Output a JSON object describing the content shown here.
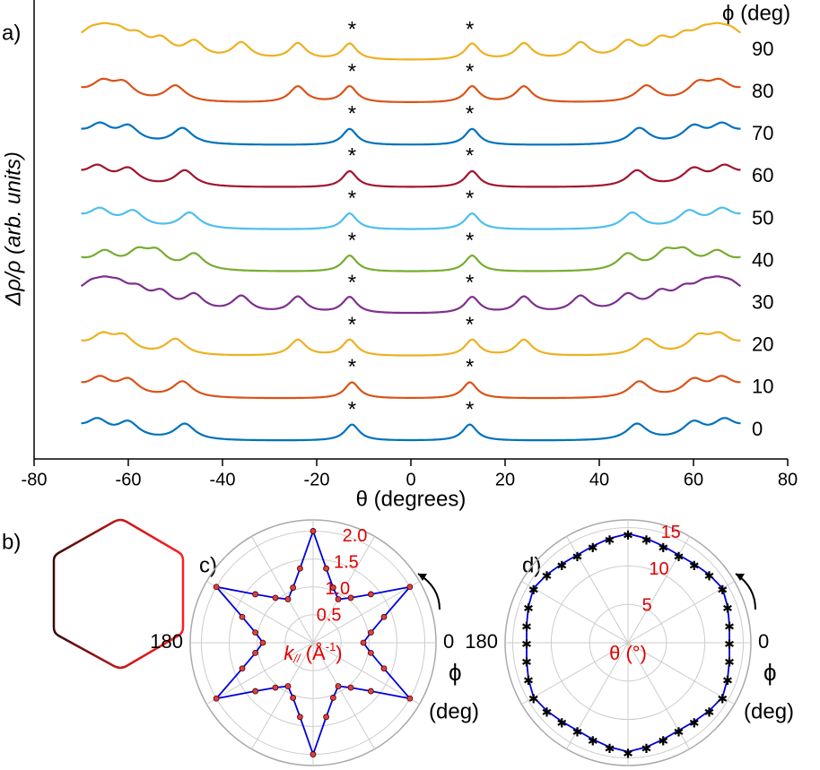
{
  "chart_data": [
    {
      "type": "waterfall",
      "panel": "a)",
      "legend_title": "ϕ (deg)",
      "ylabel": "Δρ/ρ (arb. units)",
      "xlabel": "θ (degrees)",
      "xlim": [
        -80,
        80
      ],
      "xticks": [
        -80,
        -60,
        -40,
        -20,
        0,
        20,
        40,
        60,
        80
      ],
      "curve_range": [
        -70,
        70
      ],
      "annotation": "*",
      "annotation_x": [
        -12.5,
        12.5
      ],
      "series": [
        {
          "name": "0",
          "color": "#0072bd",
          "peaks": [
            12.5,
            48,
            60,
            66.5
          ]
        },
        {
          "name": "10",
          "color": "#d95319",
          "peaks": [
            12.5,
            48.5,
            60,
            66
          ]
        },
        {
          "name": "20",
          "color": "#edb120",
          "peaks": [
            13,
            24,
            50,
            61,
            65.5
          ]
        },
        {
          "name": "30",
          "color": "#7e2f8e",
          "peaks": [
            13,
            24,
            36,
            46,
            53,
            58,
            62,
            65,
            68
          ]
        },
        {
          "name": "40",
          "color": "#77ac30",
          "peaks": [
            13,
            46,
            54,
            58,
            65
          ]
        },
        {
          "name": "50",
          "color": "#4dbeee",
          "peaks": [
            13,
            47,
            59,
            66
          ]
        },
        {
          "name": "60",
          "color": "#a2142f",
          "peaks": [
            13,
            48,
            60,
            66.5
          ]
        },
        {
          "name": "70",
          "color": "#0072bd",
          "peaks": [
            13,
            48.5,
            60,
            66
          ]
        },
        {
          "name": "80",
          "color": "#d95319",
          "peaks": [
            13,
            24,
            50,
            61,
            65.5
          ]
        },
        {
          "name": "90",
          "color": "#edb120",
          "peaks": [
            13,
            24,
            36,
            46,
            53,
            58,
            62,
            65,
            68
          ]
        }
      ]
    },
    {
      "type": "shape",
      "panel": "b)"
    },
    {
      "type": "polar",
      "panel": "c)",
      "color": "#0000dd",
      "marker_color": "#e04040",
      "rlim": [
        0,
        2.2
      ],
      "rticks": [
        {
          "value": 0.5,
          "label": "0.5"
        },
        {
          "value": 1.0,
          "label": "1.0"
        },
        {
          "value": 1.5,
          "label": "1.5"
        },
        {
          "value": 2.0,
          "label": "2.0"
        }
      ],
      "angle_ticks": [
        180,
        0
      ],
      "angle_label": [
        "ϕ",
        "(deg)"
      ],
      "rlabel": {
        "k": "k",
        "sub": "//",
        "unit": " (Å",
        "sup": "-1",
        "close": ")"
      },
      "angles": [
        0,
        10,
        20,
        30,
        40,
        50,
        60,
        70,
        80,
        90,
        100,
        110,
        120,
        130,
        140,
        150,
        160,
        170,
        180,
        190,
        200,
        210,
        220,
        230,
        240,
        250,
        260,
        270,
        280,
        290,
        300,
        310,
        320,
        330,
        340,
        350
      ],
      "values": [
        0.9,
        1.05,
        1.35,
        2.0,
        1.35,
        1.05,
        0.9,
        1.05,
        1.35,
        2.0,
        1.35,
        1.05,
        0.9,
        1.05,
        1.35,
        2.0,
        1.35,
        1.05,
        0.9,
        1.05,
        1.35,
        2.0,
        1.35,
        1.05,
        0.9,
        1.05,
        1.35,
        2.0,
        1.35,
        1.05,
        0.9,
        1.05,
        1.35,
        2.0,
        1.35,
        1.05
      ]
    },
    {
      "type": "polar",
      "panel": "d)",
      "color": "#0000dd",
      "marker_color": "#222",
      "rlim": [
        0,
        16
      ],
      "rticks": [
        5,
        10,
        15
      ],
      "angle_ticks": [
        180,
        0
      ],
      "angle_label": [
        "ϕ",
        "(deg)"
      ],
      "rlabel": {
        "k": "θ (°)"
      },
      "angles": [
        0,
        10,
        20,
        30,
        40,
        50,
        60,
        70,
        80,
        90,
        100,
        110,
        120,
        130,
        140,
        150,
        160,
        170,
        180,
        190,
        200,
        210,
        220,
        230,
        240,
        250,
        260,
        270,
        280,
        290,
        300,
        310,
        320,
        330,
        340,
        350
      ],
      "values": [
        13.2,
        13.4,
        13.8,
        14.2,
        13.8,
        13.4,
        13.2,
        13.4,
        13.8,
        14.2,
        13.8,
        13.4,
        13.2,
        13.4,
        13.8,
        14.2,
        13.8,
        13.4,
        13.2,
        13.4,
        13.8,
        14.2,
        13.8,
        13.4,
        13.2,
        13.4,
        13.8,
        14.2,
        13.8,
        13.4,
        13.2,
        13.4,
        13.8,
        14.2,
        13.8,
        13.4
      ]
    }
  ]
}
